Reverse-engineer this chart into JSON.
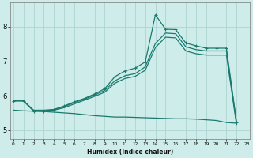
{
  "xlabel": "Humidex (Indice chaleur)",
  "background_color": "#ceecea",
  "grid_color": "#aed4d0",
  "line_color": "#1a7a6e",
  "x_ticks": [
    0,
    1,
    2,
    3,
    4,
    5,
    6,
    7,
    8,
    9,
    10,
    11,
    12,
    13,
    14,
    15,
    16,
    17,
    18,
    19,
    20,
    21,
    22,
    23
  ],
  "ylim": [
    4.75,
    8.7
  ],
  "xlim": [
    -0.3,
    23.3
  ],
  "yticks": [
    5,
    6,
    7,
    8
  ],
  "peaked_x": [
    0,
    1,
    2,
    3,
    4,
    5,
    6,
    7,
    8,
    9,
    10,
    11,
    12,
    13,
    14,
    15,
    16,
    17,
    18,
    19,
    20,
    21,
    22
  ],
  "peaked_y": [
    5.85,
    5.85,
    5.55,
    5.55,
    5.6,
    5.7,
    5.82,
    5.92,
    6.05,
    6.2,
    6.55,
    6.72,
    6.8,
    6.98,
    8.35,
    7.93,
    7.92,
    7.53,
    7.45,
    7.38,
    7.38,
    7.38,
    5.22
  ],
  "upper_diag_x": [
    0,
    1,
    2,
    3,
    4,
    5,
    6,
    7,
    8,
    9,
    10,
    11,
    12,
    13,
    14,
    15,
    16,
    17,
    18,
    19,
    20,
    21,
    22
  ],
  "upper_diag_y": [
    5.85,
    5.85,
    5.58,
    5.58,
    5.6,
    5.68,
    5.8,
    5.9,
    6.02,
    6.15,
    6.43,
    6.58,
    6.64,
    6.84,
    7.52,
    7.82,
    7.8,
    7.42,
    7.34,
    7.3,
    7.3,
    7.3,
    5.2
  ],
  "lower_diag_x": [
    0,
    1,
    2,
    3,
    4,
    5,
    6,
    7,
    8,
    9,
    10,
    11,
    12,
    13,
    14,
    15,
    16,
    17,
    18,
    19,
    20,
    21,
    22
  ],
  "lower_diag_y": [
    5.85,
    5.85,
    5.56,
    5.56,
    5.58,
    5.65,
    5.76,
    5.87,
    5.98,
    6.1,
    6.36,
    6.5,
    6.56,
    6.74,
    7.4,
    7.7,
    7.68,
    7.3,
    7.22,
    7.18,
    7.18,
    7.18,
    5.16
  ],
  "floor_x": [
    0,
    1,
    2,
    3,
    4,
    5,
    6,
    7,
    8,
    9,
    10,
    11,
    12,
    13,
    14,
    15,
    16,
    17,
    18,
    19,
    20,
    21,
    22
  ],
  "floor_y": [
    5.58,
    5.56,
    5.55,
    5.54,
    5.52,
    5.5,
    5.48,
    5.45,
    5.42,
    5.4,
    5.38,
    5.38,
    5.37,
    5.36,
    5.35,
    5.34,
    5.33,
    5.33,
    5.32,
    5.3,
    5.28,
    5.22,
    5.2
  ]
}
